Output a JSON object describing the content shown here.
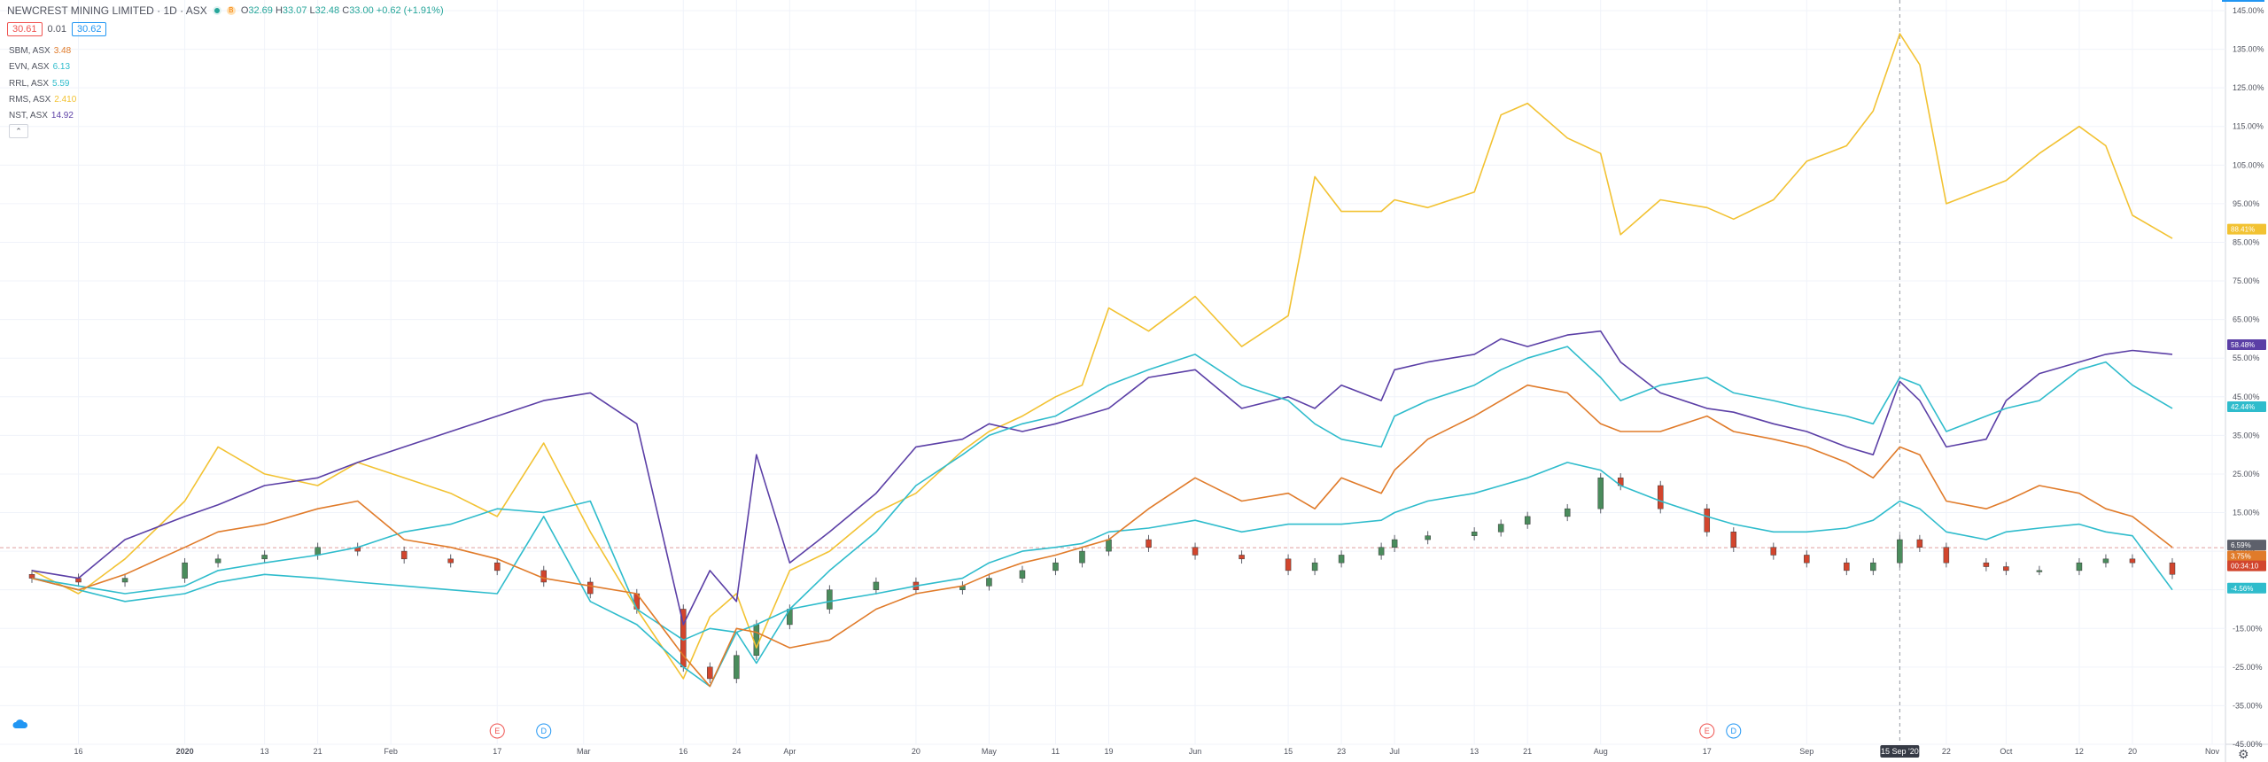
{
  "header": {
    "title": "NEWCREST MINING LIMITED · 1D · ASX",
    "open_label": "O",
    "open": "32.69",
    "high_label": "H",
    "high": "33.07",
    "low_label": "L",
    "low": "32.48",
    "close_label": "C",
    "close": "33.00",
    "change": "+0.62 (+1.91%)",
    "bid": "30.61",
    "spread": "0.01",
    "ask": "30.62",
    "market_badge": "B",
    "collapse_icon": "chevron-up-icon"
  },
  "legend": [
    {
      "symbol": "SBM, ASX",
      "value": "3.48",
      "color": "#e07b2a"
    },
    {
      "symbol": "EVN, ASX",
      "value": "6.13",
      "color": "#2fbccc"
    },
    {
      "symbol": "RRL, ASX",
      "value": "5.59",
      "color": "#2fbccc"
    },
    {
      "symbol": "RMS, ASX",
      "value": "2.410",
      "color": "#f2c232"
    },
    {
      "symbol": "NST, ASX",
      "value": "14.92",
      "color": "#5b3fa6"
    }
  ],
  "chart_data": {
    "type": "line",
    "x": [
      "2019-12-09",
      "2019-12-16",
      "2019-12-23",
      "2020-01-01",
      "2020-01-06",
      "2020-01-13",
      "2020-01-21",
      "2020-01-27",
      "2020-02-03",
      "2020-02-10",
      "2020-02-17",
      "2020-02-24",
      "2020-03-02",
      "2020-03-09",
      "2020-03-16",
      "2020-03-20",
      "2020-03-24",
      "2020-03-27",
      "2020-04-01",
      "2020-04-07",
      "2020-04-14",
      "2020-04-20",
      "2020-04-27",
      "2020-05-01",
      "2020-05-06",
      "2020-05-11",
      "2020-05-15",
      "2020-05-19",
      "2020-05-25",
      "2020-06-01",
      "2020-06-08",
      "2020-06-15",
      "2020-06-19",
      "2020-06-23",
      "2020-06-29",
      "2020-07-01",
      "2020-07-06",
      "2020-07-13",
      "2020-07-17",
      "2020-07-21",
      "2020-07-27",
      "2020-08-01",
      "2020-08-04",
      "2020-08-10",
      "2020-08-17",
      "2020-08-21",
      "2020-08-27",
      "2020-09-01",
      "2020-09-07",
      "2020-09-11",
      "2020-09-15",
      "2020-09-18",
      "2020-09-22",
      "2020-09-28",
      "2020-10-01",
      "2020-10-06",
      "2020-10-12",
      "2020-10-16",
      "2020-10-20",
      "2020-10-26"
    ],
    "ylim": [
      -45,
      145
    ],
    "yunit": "%",
    "y_ticks": [
      "145.00%",
      "135.00%",
      "125.00%",
      "115.00%",
      "105.00%",
      "95.00%",
      "85.00%",
      "75.00%",
      "65.00%",
      "55.00%",
      "45.00%",
      "35.00%",
      "25.00%",
      "15.00%",
      "5.00%",
      "-5.00%",
      "-15.00%",
      "-25.00%",
      "-35.00%",
      "-45.00%"
    ],
    "x_ticks": [
      "16",
      "2020",
      "13",
      "21",
      "Feb",
      "17",
      "Mar",
      "16",
      "24",
      "Apr",
      "20",
      "May",
      "11",
      "19",
      "Jun",
      "15",
      "23",
      "Jul",
      "13",
      "21",
      "Aug",
      "17",
      "Sep",
      "22",
      "Oct",
      "12",
      "20",
      "Nov"
    ],
    "series": [
      {
        "name": "RMS, ASX",
        "color": "#f2c232",
        "values": [
          0,
          -6,
          3,
          18,
          32,
          25,
          22,
          28,
          24,
          20,
          14,
          33,
          10,
          -10,
          -28,
          -12,
          -6,
          -20,
          0,
          5,
          15,
          20,
          31,
          36,
          40,
          45,
          48,
          68,
          62,
          71,
          58,
          66,
          102,
          93,
          93,
          96,
          94,
          98,
          118,
          121,
          112,
          108,
          87,
          96,
          94,
          91,
          96,
          106,
          110,
          119,
          139,
          131,
          95,
          99,
          101,
          108,
          115,
          110,
          92,
          86
        ]
      },
      {
        "name": "NST, ASX",
        "color": "#5b3fa6",
        "values": [
          0,
          -2,
          8,
          14,
          17,
          22,
          24,
          28,
          32,
          36,
          40,
          44,
          46,
          38,
          -14,
          0,
          -8,
          30,
          2,
          10,
          20,
          32,
          34,
          38,
          36,
          38,
          40,
          42,
          50,
          52,
          42,
          45,
          42,
          48,
          44,
          52,
          54,
          56,
          60,
          58,
          61,
          62,
          54,
          46,
          42,
          41,
          38,
          36,
          32,
          30,
          49,
          44,
          32,
          34,
          44,
          51,
          54,
          56,
          57,
          56
        ]
      },
      {
        "name": "EVN, ASX",
        "color": "#2fbccc",
        "values": [
          -2,
          -5,
          -8,
          -6,
          -3,
          -1,
          -2,
          -3,
          -4,
          -5,
          -6,
          14,
          -8,
          -14,
          -25,
          -30,
          -16,
          -14,
          -10,
          -8,
          -6,
          -4,
          -2,
          2,
          5,
          6,
          7,
          10,
          11,
          13,
          10,
          12,
          12,
          12,
          13,
          15,
          18,
          20,
          22,
          24,
          28,
          26,
          22,
          18,
          14,
          12,
          10,
          10,
          11,
          13,
          18,
          16,
          10,
          8,
          10,
          11,
          12,
          10,
          9,
          -5
        ]
      },
      {
        "name": "RRL, ASX",
        "color": "#2fbccc",
        "values": [
          -2,
          -4,
          -6,
          -4,
          0,
          2,
          4,
          6,
          10,
          12,
          16,
          15,
          18,
          -10,
          -18,
          -15,
          -16,
          -24,
          -10,
          0,
          10,
          22,
          30,
          35,
          38,
          40,
          44,
          48,
          52,
          56,
          48,
          44,
          38,
          34,
          32,
          40,
          44,
          48,
          52,
          55,
          58,
          50,
          44,
          48,
          50,
          46,
          44,
          42,
          40,
          38,
          50,
          48,
          36,
          40,
          42,
          44,
          52,
          54,
          48,
          42
        ]
      },
      {
        "name": "SBM, ASX",
        "color": "#e07b2a",
        "values": [
          -2,
          -5,
          -1,
          6,
          10,
          12,
          16,
          18,
          8,
          6,
          3,
          -2,
          -4,
          -6,
          -22,
          -30,
          -15,
          -16,
          -20,
          -18,
          -10,
          -6,
          -4,
          -1,
          2,
          4,
          6,
          8,
          16,
          24,
          18,
          20,
          16,
          24,
          20,
          26,
          34,
          40,
          44,
          48,
          46,
          38,
          36,
          36,
          40,
          36,
          34,
          32,
          28,
          24,
          32,
          30,
          18,
          16,
          18,
          22,
          20,
          16,
          14,
          6
        ]
      }
    ],
    "main_series": {
      "name": "NEWCREST MINING LIMITED",
      "up_color": "#4a8c5c",
      "down_color": "#d2452d",
      "close_pct": [
        -2,
        -3,
        -2,
        2,
        3,
        4,
        6,
        5,
        3,
        2,
        0,
        -3,
        -6,
        -10,
        -25,
        -28,
        -22,
        -14,
        -10,
        -5,
        -3,
        -5,
        -4,
        -2,
        0,
        2,
        5,
        8,
        6,
        4,
        3,
        0,
        2,
        4,
        6,
        8,
        9,
        10,
        12,
        14,
        16,
        24,
        22,
        16,
        10,
        6,
        4,
        2,
        0,
        2,
        8,
        6,
        2,
        1,
        0,
        0,
        2,
        3,
        2,
        -1
      ]
    },
    "price_labels": [
      {
        "value": "88.41%",
        "color": "#f2c232"
      },
      {
        "value": "58.48%",
        "color": "#5b3fa6"
      },
      {
        "value": "42.44%",
        "color": "#2fbccc"
      },
      {
        "value": "6.59%",
        "color": "#5d606b"
      },
      {
        "value": "3.75%",
        "color": "#e07b2a"
      },
      {
        "value": "00:34:10",
        "color": "#d2452d"
      },
      {
        "value": "-4.56%",
        "color": "#2fbccc"
      }
    ],
    "crosshair": {
      "date_label": "15 Sep '20",
      "x_value": "2020-09-15"
    },
    "event_markers": [
      {
        "text": "E",
        "color": "#ef5350",
        "x_value": "2020-02-17"
      },
      {
        "text": "D",
        "color": "#2196f3",
        "x_value": "2020-02-24"
      },
      {
        "text": "E",
        "color": "#ef5350",
        "x_value": "2020-08-17"
      },
      {
        "text": "D",
        "color": "#2196f3",
        "x_value": "2020-08-21"
      }
    ],
    "grid": true
  }
}
